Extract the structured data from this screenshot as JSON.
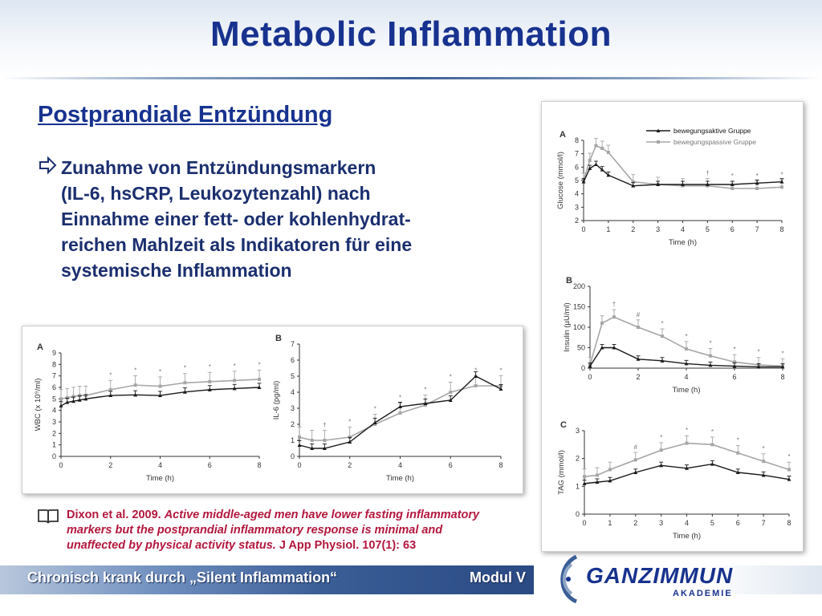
{
  "slide": {
    "title": "Metabolic Inflammation",
    "subtitle": "Postprandiale Entzündung",
    "bullet": "Zunahme von Entzündungsmarkern (IL-6, hsCRP, Leukozytenzahl) nach Einnahme einer fett- oder kohlenhydrat-reichen Mahlzeit als Indikatoren für eine systemische Inflammation",
    "bullet_lines": [
      "Zunahme von Entzündungsmarkern",
      "(IL-6, hsCRP, Leukozytenzahl) nach",
      "Einnahme einer fett- oder kohlenhydrat-",
      "reichen Mahlzeit als Indikatoren für eine",
      "systemische Inflammation"
    ],
    "reference": {
      "authors": "Dixon et al. 2009.",
      "title_lines": [
        "Active middle-aged men have lower fasting inflammatory",
        "markers but the postprandial inflammatory response is minimal and",
        "unaffected by physical activity status."
      ],
      "journal": "J App Physiol. 107(1): 63"
    },
    "footer_left": "Chronisch krank durch „Silent Inflammation“",
    "footer_right": "Modul V",
    "logo_main": "GANZIMMUN",
    "logo_sub": "AKADEMIE",
    "colors": {
      "title": "#17328f",
      "reference": "#b3173d",
      "active": "#1a1a1a",
      "passive": "#a6a6a6"
    }
  },
  "chart_data": [
    {
      "type": "line",
      "panel": "A",
      "xlabel": "Time (h)",
      "ylabel": "WBC (x 10⁹/ml)",
      "xlim": [
        0,
        8
      ],
      "ylim": [
        0,
        9
      ],
      "xticks": [
        "0",
        "2",
        "4",
        "6",
        "8"
      ],
      "yticks": [
        "0",
        "1",
        "2",
        "3",
        "4",
        "5",
        "6",
        "7",
        "8",
        "9"
      ],
      "x": [
        0,
        0.25,
        0.5,
        0.75,
        1,
        2,
        3,
        4,
        5,
        6,
        7,
        8
      ],
      "series": [
        {
          "values": [
            4.4,
            4.7,
            4.8,
            4.9,
            5.0,
            5.3,
            5.35,
            5.3,
            5.6,
            5.8,
            5.9,
            6.0
          ]
        },
        {
          "values": [
            5.0,
            5.1,
            5.2,
            5.3,
            5.3,
            5.8,
            6.2,
            6.1,
            6.4,
            6.5,
            6.6,
            6.7
          ]
        }
      ],
      "significance": [
        "*",
        "*",
        "*",
        "*",
        "*",
        "*",
        "*"
      ]
    },
    {
      "type": "line",
      "panel": "B",
      "xlabel": "Time (h)",
      "ylabel": "IL-6 (pg/ml)",
      "xlim": [
        0,
        8
      ],
      "ylim": [
        0,
        7
      ],
      "xticks": [
        "0",
        "2",
        "4",
        "6",
        "8"
      ],
      "yticks": [
        "0",
        "1",
        "2",
        "3",
        "4",
        "5",
        "6",
        "7"
      ],
      "x": [
        0,
        0.5,
        1,
        2,
        3,
        4,
        5,
        6,
        7,
        8
      ],
      "series": [
        {
          "values": [
            0.7,
            0.5,
            0.5,
            0.9,
            2.1,
            3.1,
            3.3,
            3.5,
            5.0,
            4.2
          ]
        },
        {
          "values": [
            1.2,
            1.0,
            1.0,
            1.2,
            2.0,
            2.7,
            3.2,
            4.0,
            4.4,
            4.4
          ]
        }
      ],
      "significance": [
        "†",
        "*",
        "*",
        "*",
        "*",
        "*",
        "*",
        "*"
      ]
    },
    {
      "type": "line",
      "panel": "A",
      "xlabel": "Time (h)",
      "ylabel": "Glucose (mmol/l)",
      "xlim": [
        0,
        8
      ],
      "ylim": [
        2,
        8
      ],
      "xticks": [
        "0",
        "1",
        "2",
        "3",
        "4",
        "5",
        "6",
        "7",
        "8"
      ],
      "yticks": [
        "2",
        "3",
        "4",
        "5",
        "6",
        "7",
        "8"
      ],
      "x": [
        0,
        0.25,
        0.5,
        0.75,
        1,
        2,
        3,
        4,
        5,
        6,
        7,
        8
      ],
      "series": [
        {
          "name": "bewegungsaktive Gruppe",
          "values": [
            4.9,
            5.9,
            6.2,
            5.8,
            5.4,
            4.6,
            4.7,
            4.7,
            4.7,
            4.7,
            4.8,
            4.9
          ]
        },
        {
          "name": "bewegungspassive Gruppe",
          "values": [
            5.0,
            6.5,
            7.6,
            7.4,
            7.1,
            4.9,
            4.7,
            4.6,
            4.6,
            4.4,
            4.4,
            4.5
          ]
        }
      ],
      "significance": [
        "†",
        "*",
        "*",
        "*"
      ]
    },
    {
      "type": "line",
      "panel": "B",
      "xlabel": "Time (h)",
      "ylabel": "Insulin (µU/ml)",
      "xlim": [
        0,
        8
      ],
      "ylim": [
        0,
        200
      ],
      "xticks": [
        "0",
        "2",
        "4",
        "6",
        "8"
      ],
      "yticks": [
        "0",
        "50",
        "100",
        "150",
        "200"
      ],
      "x": [
        0,
        0.5,
        1,
        2,
        3,
        4,
        5,
        6,
        7,
        8
      ],
      "series": [
        {
          "values": [
            5,
            50,
            50,
            22,
            18,
            11,
            7,
            5,
            3,
            3
          ]
        },
        {
          "values": [
            8,
            110,
            125,
            100,
            78,
            47,
            30,
            15,
            8,
            5
          ]
        }
      ],
      "significance": [
        "†",
        "#",
        "*",
        "*",
        "*",
        "*",
        "*",
        "*"
      ]
    },
    {
      "type": "line",
      "panel": "C",
      "xlabel": "Time (h)",
      "ylabel": "TAG (mmol/l)",
      "xlim": [
        0,
        8
      ],
      "ylim": [
        0,
        3
      ],
      "xticks": [
        "0",
        "1",
        "2",
        "3",
        "4",
        "5",
        "6",
        "7",
        "8"
      ],
      "yticks": [
        "0",
        "1",
        "2",
        "3"
      ],
      "x": [
        0,
        0.5,
        1,
        2,
        3,
        4,
        5,
        6,
        7,
        8
      ],
      "series": [
        {
          "values": [
            1.1,
            1.15,
            1.2,
            1.5,
            1.75,
            1.65,
            1.8,
            1.5,
            1.4,
            1.25
          ]
        },
        {
          "values": [
            1.35,
            1.4,
            1.6,
            1.95,
            2.3,
            2.55,
            2.5,
            2.2,
            1.9,
            1.6
          ]
        }
      ],
      "significance": [
        "#",
        "*",
        "*",
        "*",
        "*",
        "*",
        "*"
      ]
    }
  ]
}
